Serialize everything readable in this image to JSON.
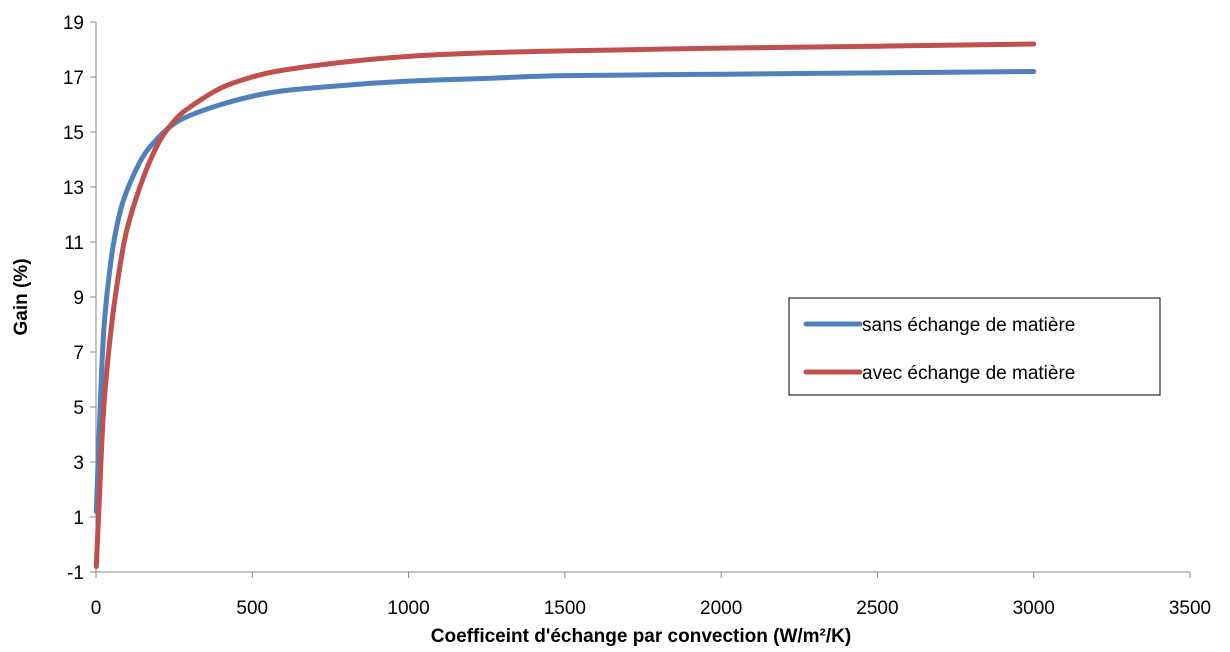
{
  "chart_data": {
    "type": "line",
    "title": "",
    "xlabel": "Coefficeint d'échange par convection (W/m²/K)",
    "ylabel": "Gain (%)",
    "xlim": [
      0,
      3500
    ],
    "ylim": [
      -1,
      19
    ],
    "x_ticks": [
      0,
      500,
      1000,
      1500,
      2000,
      2500,
      3000,
      3500
    ],
    "y_ticks": [
      -1,
      1,
      3,
      5,
      7,
      9,
      11,
      13,
      15,
      17,
      19
    ],
    "grid": false,
    "legend_position": "right",
    "series": [
      {
        "name": "sans échange de matière",
        "color": "#4F81BD",
        "x": [
          1,
          10,
          25,
          50,
          75,
          100,
          150,
          200,
          250,
          300,
          400,
          500,
          600,
          800,
          1000,
          1250,
          1500,
          2000,
          2500,
          3000
        ],
        "y": [
          1.2,
          4.0,
          7.8,
          10.5,
          12.0,
          12.9,
          14.1,
          14.8,
          15.3,
          15.6,
          16.0,
          16.3,
          16.5,
          16.7,
          16.85,
          16.95,
          17.05,
          17.1,
          17.15,
          17.2
        ]
      },
      {
        "name": "avec échange de matière",
        "color": "#C0504D",
        "x": [
          1,
          10,
          25,
          50,
          75,
          100,
          150,
          200,
          250,
          300,
          400,
          500,
          600,
          800,
          1000,
          1250,
          1500,
          2000,
          2500,
          3000
        ],
        "y": [
          -0.8,
          1.5,
          5.0,
          8.0,
          10.0,
          11.5,
          13.3,
          14.6,
          15.4,
          15.9,
          16.6,
          17.0,
          17.25,
          17.55,
          17.75,
          17.88,
          17.95,
          18.05,
          18.12,
          18.2
        ]
      }
    ]
  }
}
